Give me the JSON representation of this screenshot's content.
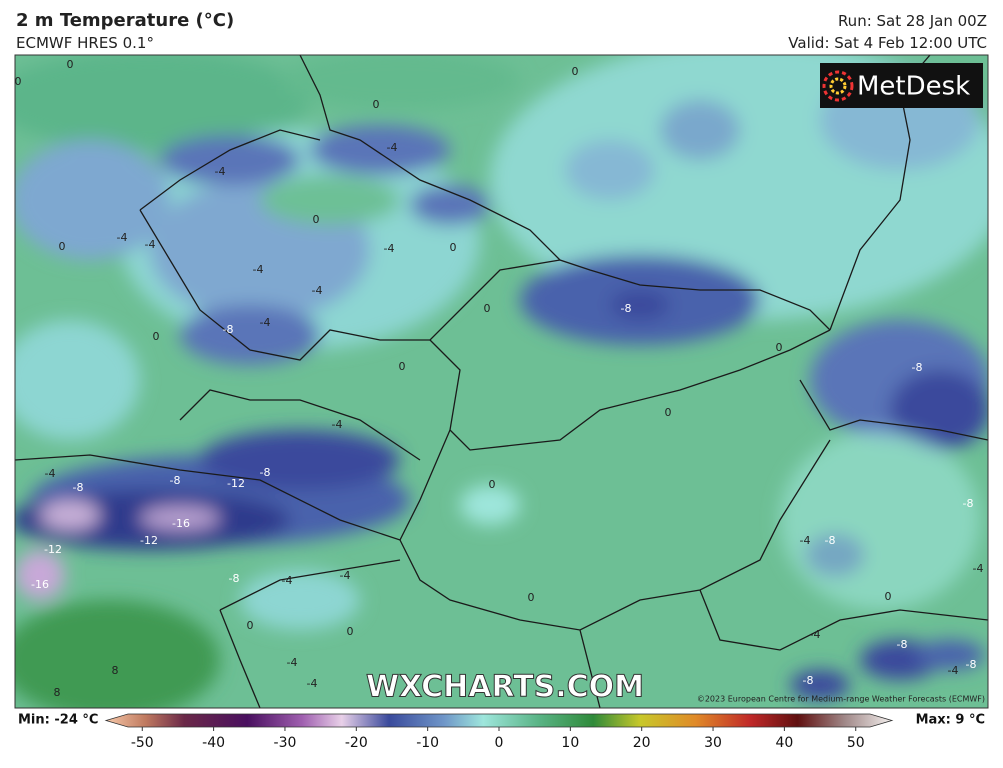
{
  "header": {
    "title": "2 m Temperature (°C)",
    "subtitle": "ECMWF HRES 0.1°",
    "run": "Run: Sat 28 Jan 00Z",
    "valid": "Valid: Sat 4 Feb 12:00 UTC"
  },
  "logo": "MetDesk",
  "watermark": "WXCHARTS.COM",
  "copyright": "©2023 European Centre for Medium-range Weather Forecasts (ECMWF)",
  "contour_labels": [
    0,
    0,
    0,
    0,
    -4,
    -4,
    0,
    -4,
    -4,
    0,
    -4,
    0,
    -4,
    -4,
    0,
    -8,
    -8,
    -4,
    0,
    0,
    0,
    -8,
    0,
    -4,
    -8,
    -8,
    -12,
    -8,
    -4,
    0,
    -16,
    -12,
    -12,
    -16,
    -8,
    -4,
    -8,
    -4,
    -8,
    -4,
    -4,
    0,
    0,
    -4,
    -8,
    -4,
    -8,
    -8,
    -4,
    -4,
    8,
    8,
    0,
    0
  ],
  "colorbar": {
    "min_label": "Min: -24 °C",
    "max_label": "Max: 9 °C",
    "range": [
      -52,
      52
    ],
    "ticks": [
      -50,
      -40,
      -30,
      -20,
      -10,
      0,
      10,
      20,
      30,
      40,
      50
    ]
  }
}
